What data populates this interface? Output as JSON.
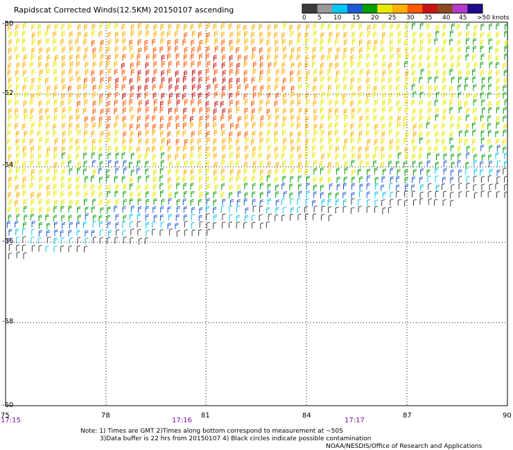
{
  "title": "Rapidscat Corrected Winds(12.5KM) 20150107 ascending",
  "colorbar": {
    "labels": [
      "0",
      "5",
      "10",
      "15",
      "20",
      "25",
      "30",
      "35",
      "40",
      "45",
      ">50 knots"
    ],
    "colors": [
      "#3c3c3c",
      "#9a9a9a",
      "#00c8f0",
      "#1c5ad6",
      "#00a000",
      "#e8e800",
      "#ffb000",
      "#ff5a00",
      "#c81414",
      "#8c4a1e",
      "#b43cc8",
      "#1e0a8c"
    ]
  },
  "map": {
    "lon_labels": [
      "75",
      "78",
      "81",
      "84",
      "87",
      "90"
    ],
    "lat_labels": [
      "-50",
      "-52",
      "-54",
      "-56",
      "-58",
      "-60"
    ],
    "time_labels": [
      "17:15",
      "17:16",
      "17:17"
    ]
  },
  "notes": {
    "line1": "Note: 1) Times are GMT 2)Times along bottom correspond to measurement at ~50S",
    "line2": "3)Data buffer is 22 hrs from 20150107 4) Black circles indicate possible contamination",
    "credit": "NOAA/NESDIS/Office of Research and Applications"
  }
}
